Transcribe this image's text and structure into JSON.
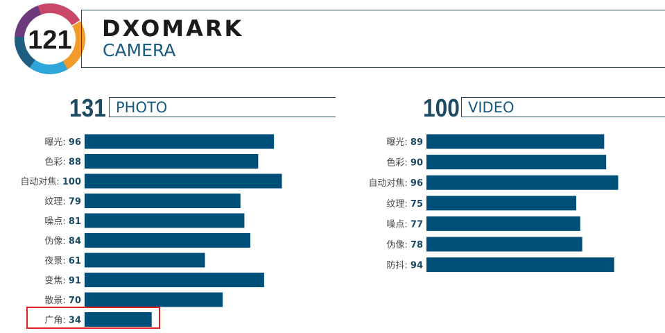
{
  "header": {
    "overall_score": "121",
    "brand_name": "DXOMARK",
    "brand_sub": "CAMERA"
  },
  "colors": {
    "bar": "#004f78",
    "label": "#4a4a4a",
    "score": "#1c4a63",
    "highlight": "#e02020",
    "badge_ring": [
      "#6d3a7c",
      "#c9486a",
      "#f39a2c",
      "#2fa6d9",
      "#1e5f80"
    ]
  },
  "chart_data": [
    {
      "type": "bar",
      "orientation": "horizontal",
      "section_score": "131",
      "title": "PHOTO",
      "categories": [
        "曝光",
        "色彩",
        "自动对焦",
        "纹理",
        "噪点",
        "伪像",
        "夜景",
        "变焦",
        "散景",
        "广角"
      ],
      "values": [
        96,
        88,
        100,
        79,
        81,
        84,
        61,
        91,
        70,
        34
      ],
      "xlim": [
        0,
        100
      ],
      "highlighted": "广角"
    },
    {
      "type": "bar",
      "orientation": "horizontal",
      "section_score": "100",
      "title": "VIDEO",
      "categories": [
        "曝光",
        "色彩",
        "自动对焦",
        "纹理",
        "噪点",
        "伪像",
        "防抖"
      ],
      "values": [
        89,
        90,
        96,
        75,
        77,
        78,
        94
      ],
      "xlim": [
        0,
        100
      ]
    }
  ]
}
